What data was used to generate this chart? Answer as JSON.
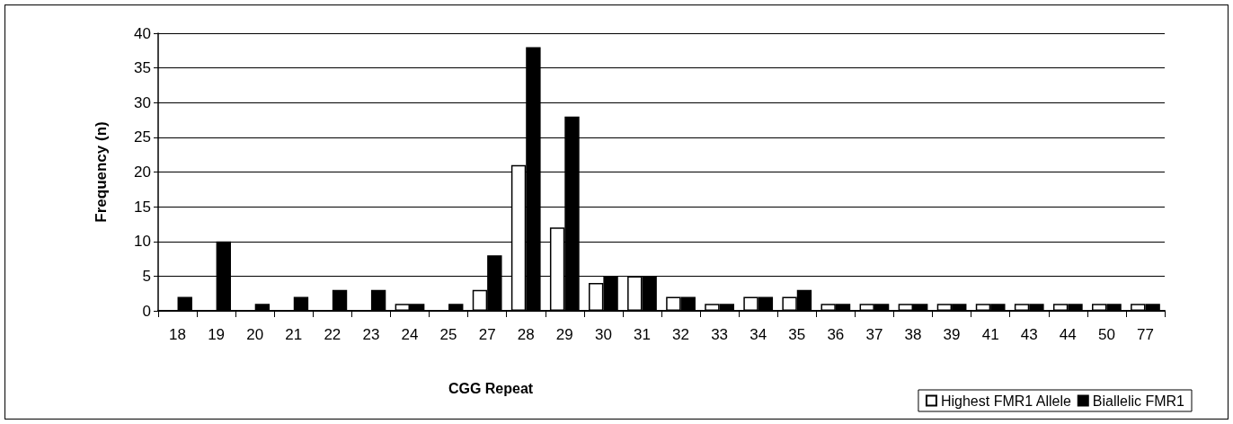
{
  "chart_data": {
    "type": "bar",
    "xlabel": "CGG Repeat",
    "ylabel": "Frequency (n)",
    "categories": [
      "18",
      "19",
      "20",
      "21",
      "22",
      "23",
      "24",
      "25",
      "27",
      "28",
      "29",
      "30",
      "31",
      "32",
      "33",
      "34",
      "35",
      "36",
      "37",
      "38",
      "39",
      "41",
      "43",
      "44",
      "50",
      "77"
    ],
    "series": [
      {
        "name": "Highest FMR1 Allele",
        "color": "#ffffff",
        "values": [
          0,
          0,
          0,
          0,
          0,
          0,
          1,
          0,
          3,
          21,
          12,
          4,
          5,
          2,
          1,
          2,
          2,
          1,
          1,
          1,
          1,
          1,
          1,
          1,
          1,
          1
        ]
      },
      {
        "name": "Biallelic FMR1",
        "color": "#000000",
        "values": [
          2,
          10,
          1,
          2,
          3,
          3,
          1,
          1,
          8,
          38,
          28,
          5,
          5,
          2,
          1,
          2,
          3,
          1,
          1,
          1,
          1,
          1,
          1,
          1,
          1,
          1
        ]
      }
    ],
    "ylim": [
      0,
      40
    ],
    "yticks": [
      0,
      5,
      10,
      15,
      20,
      25,
      30,
      35,
      40
    ],
    "grid": "y",
    "legend": "bottom right"
  }
}
